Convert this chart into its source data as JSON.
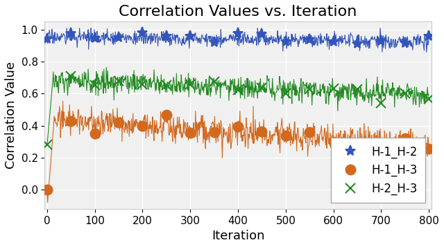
{
  "title": "Correlation Values vs. Iteration",
  "xlabel": "Iteration",
  "ylabel": "Correlation Value",
  "xlim": [
    -5,
    805
  ],
  "ylim": [
    -0.12,
    1.05
  ],
  "yticks": [
    0.0,
    0.2,
    0.4,
    0.6,
    0.8,
    1.0
  ],
  "xticks": [
    0,
    100,
    200,
    300,
    400,
    500,
    600,
    700,
    800
  ],
  "series": [
    {
      "label": "H-1_H-2",
      "color": "#3355bb",
      "marker": "*",
      "markersize": 11,
      "markevery": 50,
      "noise_scale": 0.022,
      "trend_start": 0.955,
      "trend_end": 0.925
    },
    {
      "label": "H-1_H-3",
      "color": "#d2691e",
      "marker": "o",
      "markersize": 10,
      "markevery": 50,
      "noise_scale": 0.045,
      "trend_start": 0.4,
      "trend_end": 0.27
    },
    {
      "label": "H-2_H-3",
      "color": "#228b22",
      "marker": "x",
      "markersize": 10,
      "markevery": 50,
      "noise_scale": 0.035,
      "trend_start": 0.635,
      "trend_end": 0.595
    }
  ],
  "n_points": 800,
  "grid": true,
  "background_color": "#ffffff",
  "axes_facecolor": "#f0f0f0",
  "title_fontsize": 16,
  "label_fontsize": 13,
  "tick_fontsize": 11,
  "legend_fontsize": 12
}
